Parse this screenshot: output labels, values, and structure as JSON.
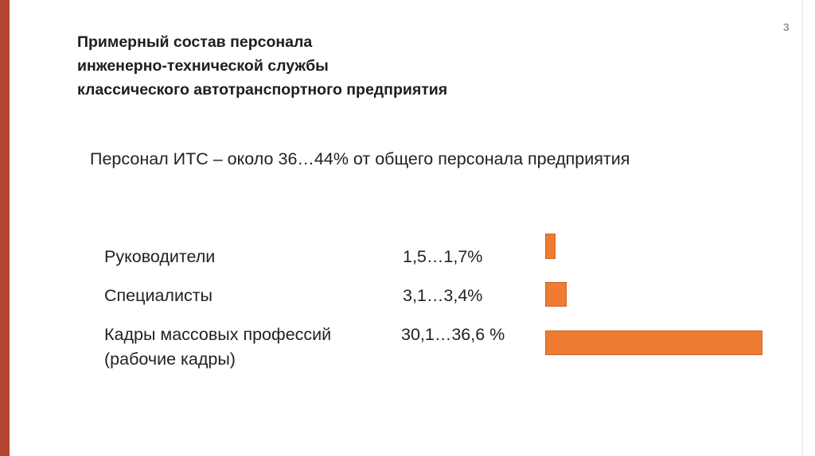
{
  "slide": {
    "page_number": "3",
    "title_lines": [
      "Примерный состав персонала",
      "инженерно-технической службы",
      "классического автотранспортного предприятия"
    ],
    "subtitle": "Персонал ИТС – около 36…44% от общего персонала предприятия",
    "rows": [
      {
        "label_lines": [
          "Руководители"
        ],
        "value": "1,5…1,7%",
        "level": 1.6
      },
      {
        "label_lines": [
          "Специалисты"
        ],
        "value": "3,1…3,4%",
        "level": 3.25
      },
      {
        "label_lines": [
          "Кадры массовых профессий",
          "(рабочие кадры)"
        ],
        "value": "30,1…36,6 %",
        "level": 33.35
      }
    ]
  },
  "colors": {
    "accent_bar": "#b5462f",
    "data_bar": "#ee7d31"
  }
}
